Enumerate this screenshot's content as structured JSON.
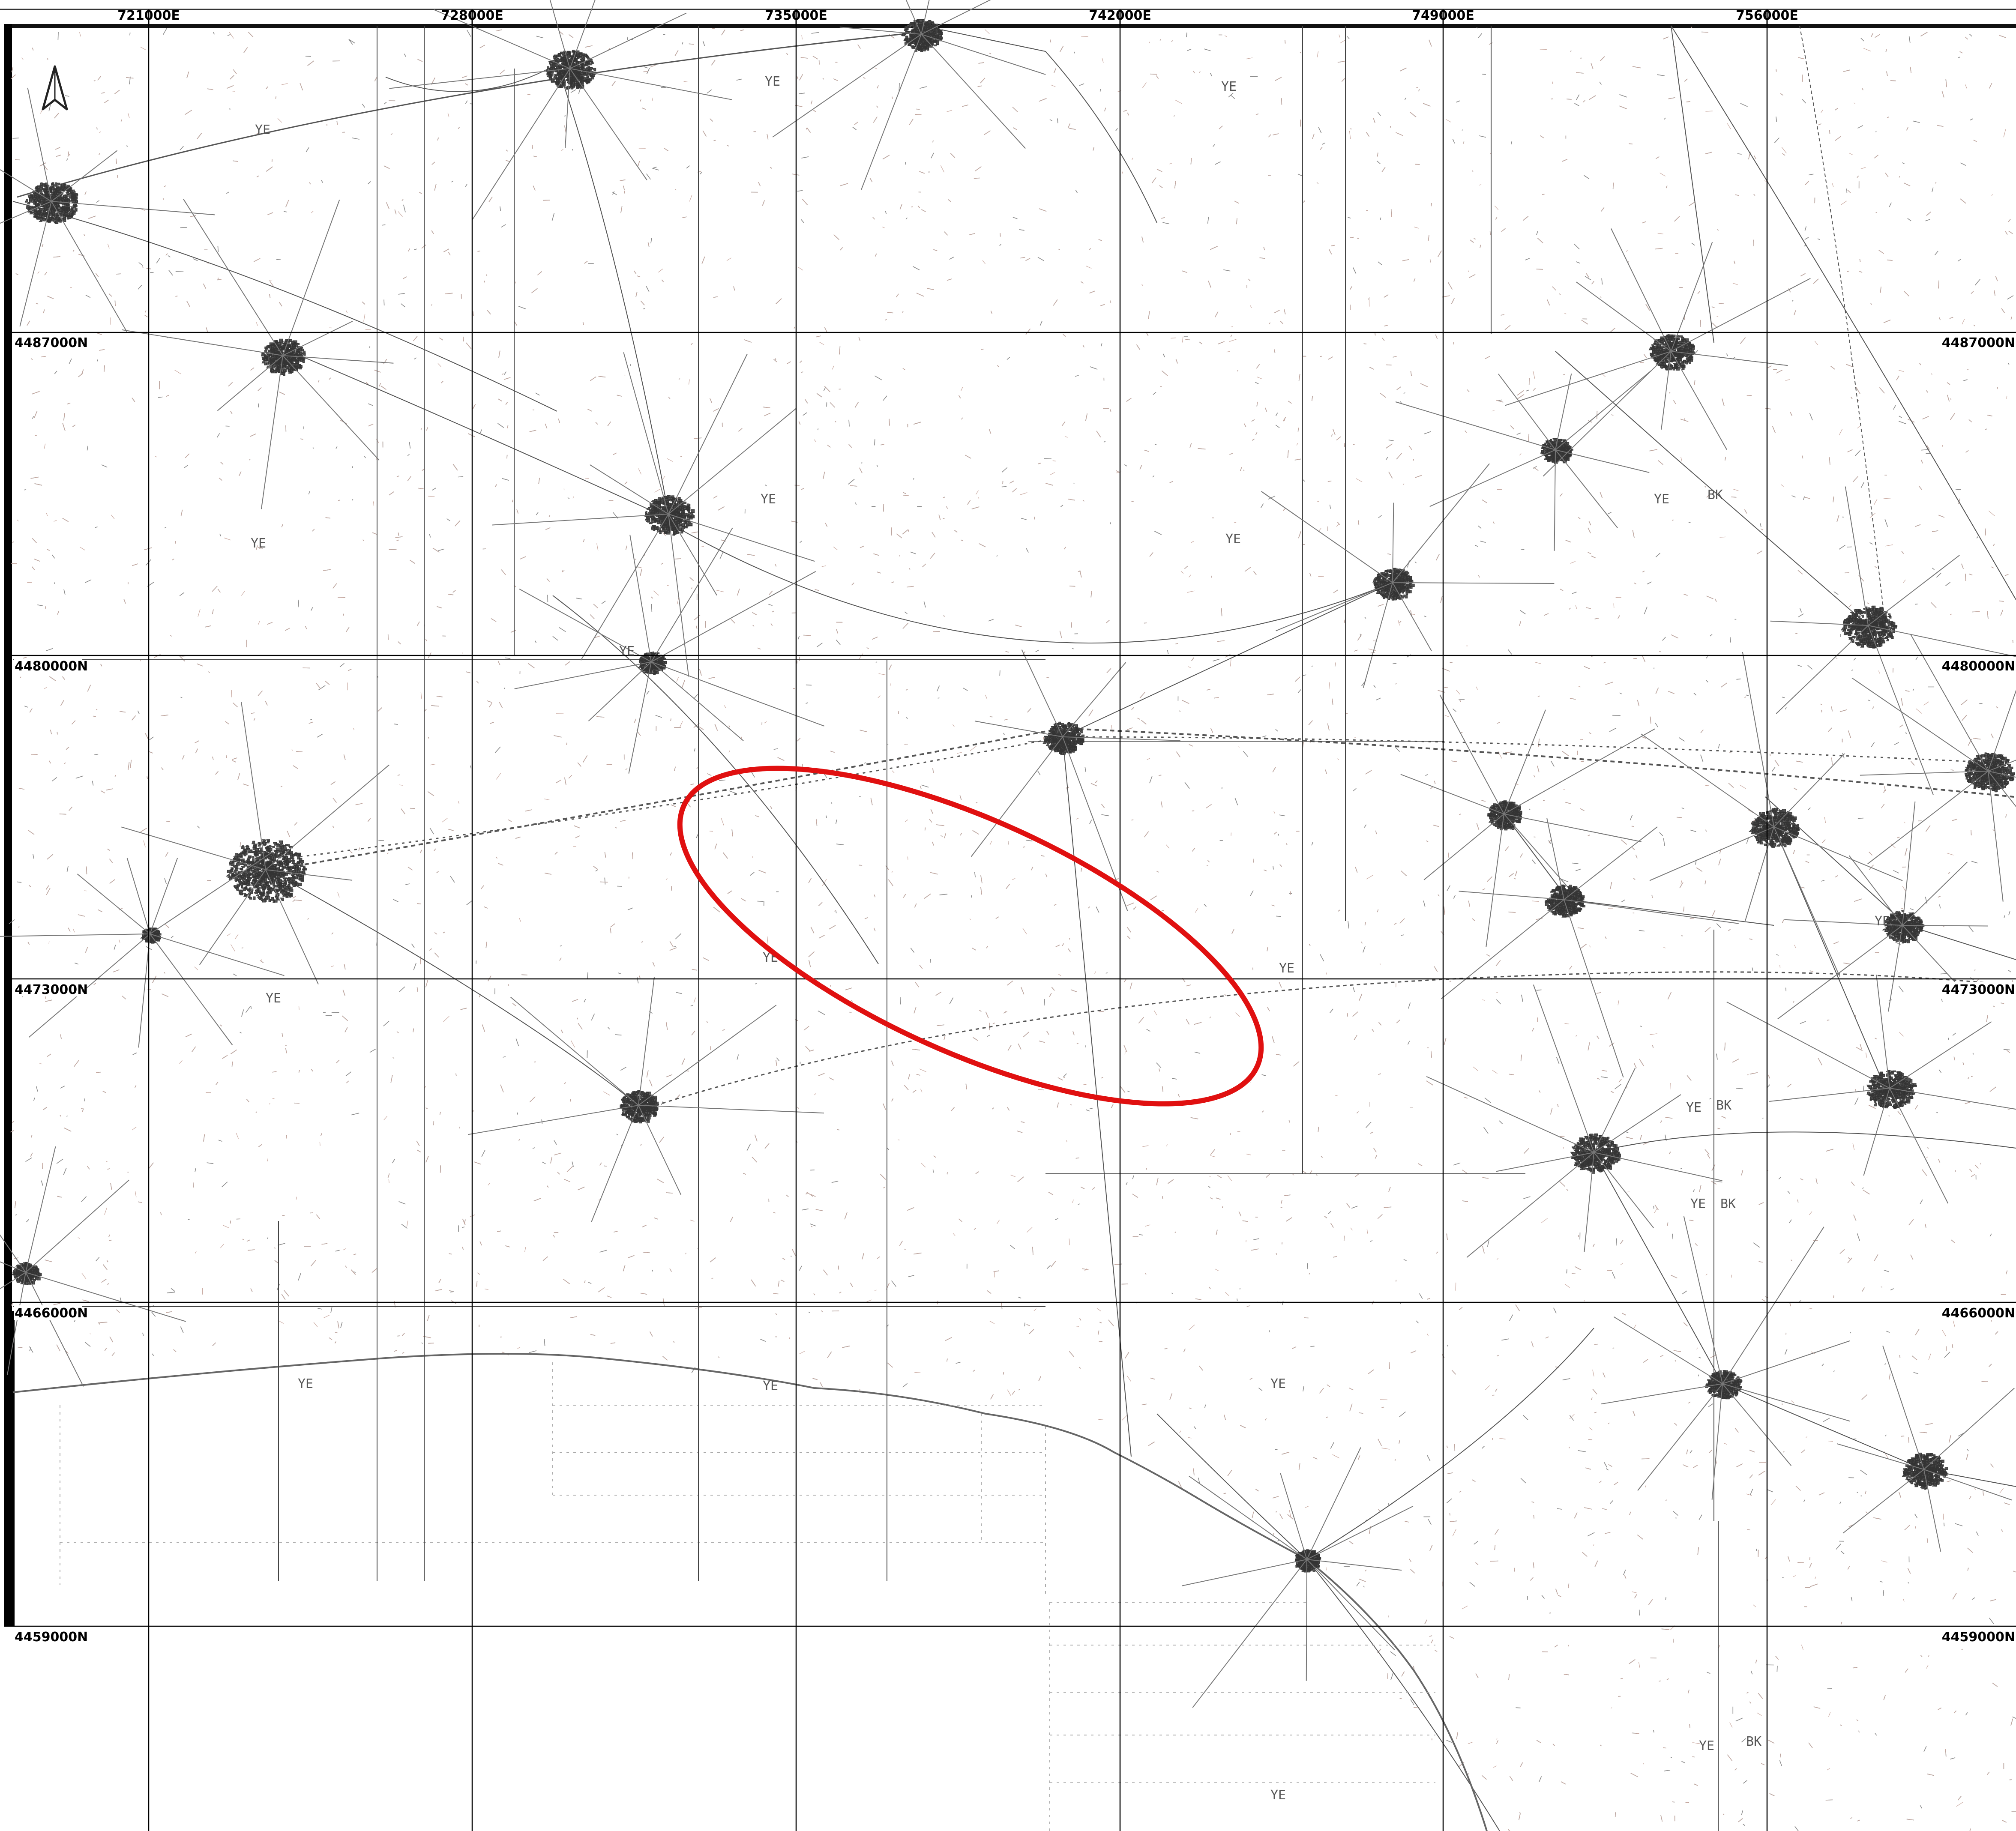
{
  "map": {
    "eastings": [
      "721000E",
      "728000E",
      "735000E",
      "742000E",
      "749000E",
      "756000E"
    ],
    "northings": [
      "4487000N",
      "4480000N",
      "4473000N",
      "4466000N",
      "4459000N"
    ],
    "sheet_labels": [
      "YE",
      "YE",
      "YE",
      "YE",
      "YE",
      "YE",
      "YE",
      "YE",
      "YE",
      "YE",
      "YE",
      "YE",
      "YE",
      "YE",
      "YE",
      "YE",
      "BK",
      "BK",
      "BK",
      "BK",
      "YE",
      "YE",
      "YE"
    ],
    "north_arrow": "north-arrow-icon",
    "highlight": {
      "shape": "ellipse",
      "color": "#e01010"
    },
    "colors": {
      "grid": "#000000",
      "background": "#ffffff",
      "topo": "#777777"
    }
  }
}
